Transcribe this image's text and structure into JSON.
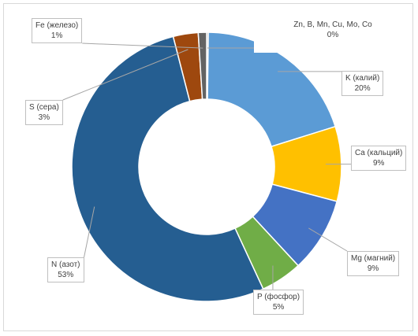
{
  "chart_data": {
    "type": "doughnut",
    "title": "",
    "slices": [
      {
        "name": "Zn, B, Mn, Cu, Mo, Co",
        "value": 0,
        "pct_label": "0%",
        "color": "#8c8c8c"
      },
      {
        "name": "K (калий)",
        "value": 20,
        "pct_label": "20%",
        "color": "#5b9bd5"
      },
      {
        "name": "Ca (кальций)",
        "value": 9,
        "pct_label": "9%",
        "color": "#ffc000"
      },
      {
        "name": "Mg (магний)",
        "value": 9,
        "pct_label": "9%",
        "color": "#4472c4"
      },
      {
        "name": "P (фосфор)",
        "value": 5,
        "pct_label": "5%",
        "color": "#70ad47"
      },
      {
        "name": "N (азот)",
        "value": 53,
        "pct_label": "53%",
        "color": "#255e91"
      },
      {
        "name": "S (сера)",
        "value": 3,
        "pct_label": "3%",
        "color": "#9e480e"
      },
      {
        "name": "Fe (железо)",
        "value": 1,
        "pct_label": "1%",
        "color": "#636363"
      }
    ]
  }
}
